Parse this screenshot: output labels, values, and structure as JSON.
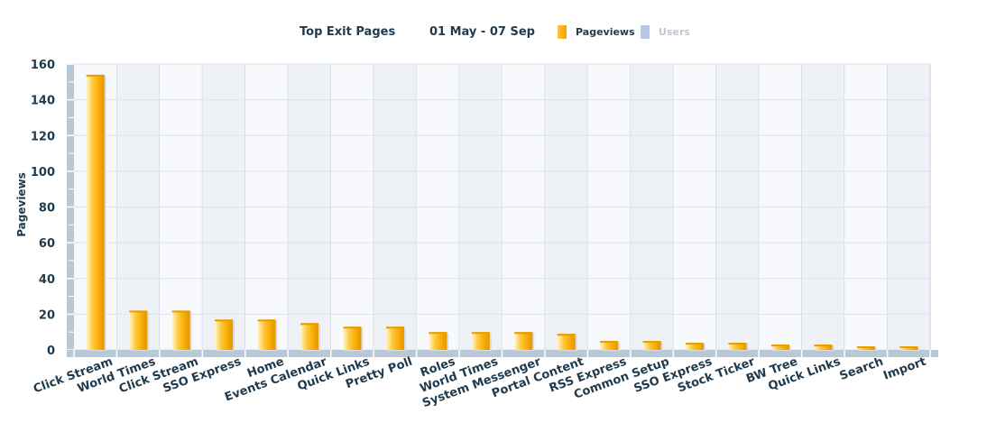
{
  "header": {
    "title": "Top Exit Pages",
    "date_range": "01 May - 07 Sep"
  },
  "legend": {
    "items": [
      {
        "label": "Pageviews",
        "color": "#f5a800",
        "active": true
      },
      {
        "label": "Users",
        "color": "#b8c8e0",
        "active": false
      }
    ]
  },
  "colors": {
    "bar": "#f5a800",
    "bar_highlight": "#fff4c8",
    "axis": "#b8c8d6",
    "band_light": "#f7f9fc",
    "band_dark": "#eef2f6"
  },
  "chart_data": {
    "type": "bar",
    "title": "Top Exit Pages",
    "subtitle": "01 May - 07 Sep",
    "xlabel": "",
    "ylabel": "Pageviews",
    "ylim": [
      0,
      160
    ],
    "yticks": [
      0,
      20,
      40,
      60,
      80,
      100,
      120,
      140,
      160
    ],
    "grid": true,
    "legend": "top",
    "categories": [
      "Click Stream",
      "World Times",
      "Click Stream",
      "SSO Express",
      "Home",
      "Events Calendar",
      "Quick Links",
      "Pretty Poll",
      "Roles",
      "World Times",
      "System Messenger",
      "Portal Content",
      "RSS Express",
      "Common Setup",
      "SSO Express",
      "Stock Ticker",
      "BW Tree",
      "Quick Links",
      "Search",
      "Import"
    ],
    "series": [
      {
        "name": "Pageviews",
        "values": [
          154,
          22,
          22,
          17,
          17,
          15,
          13,
          13,
          10,
          10,
          10,
          9,
          5,
          5,
          4,
          4,
          3,
          3,
          2,
          2
        ]
      }
    ]
  }
}
